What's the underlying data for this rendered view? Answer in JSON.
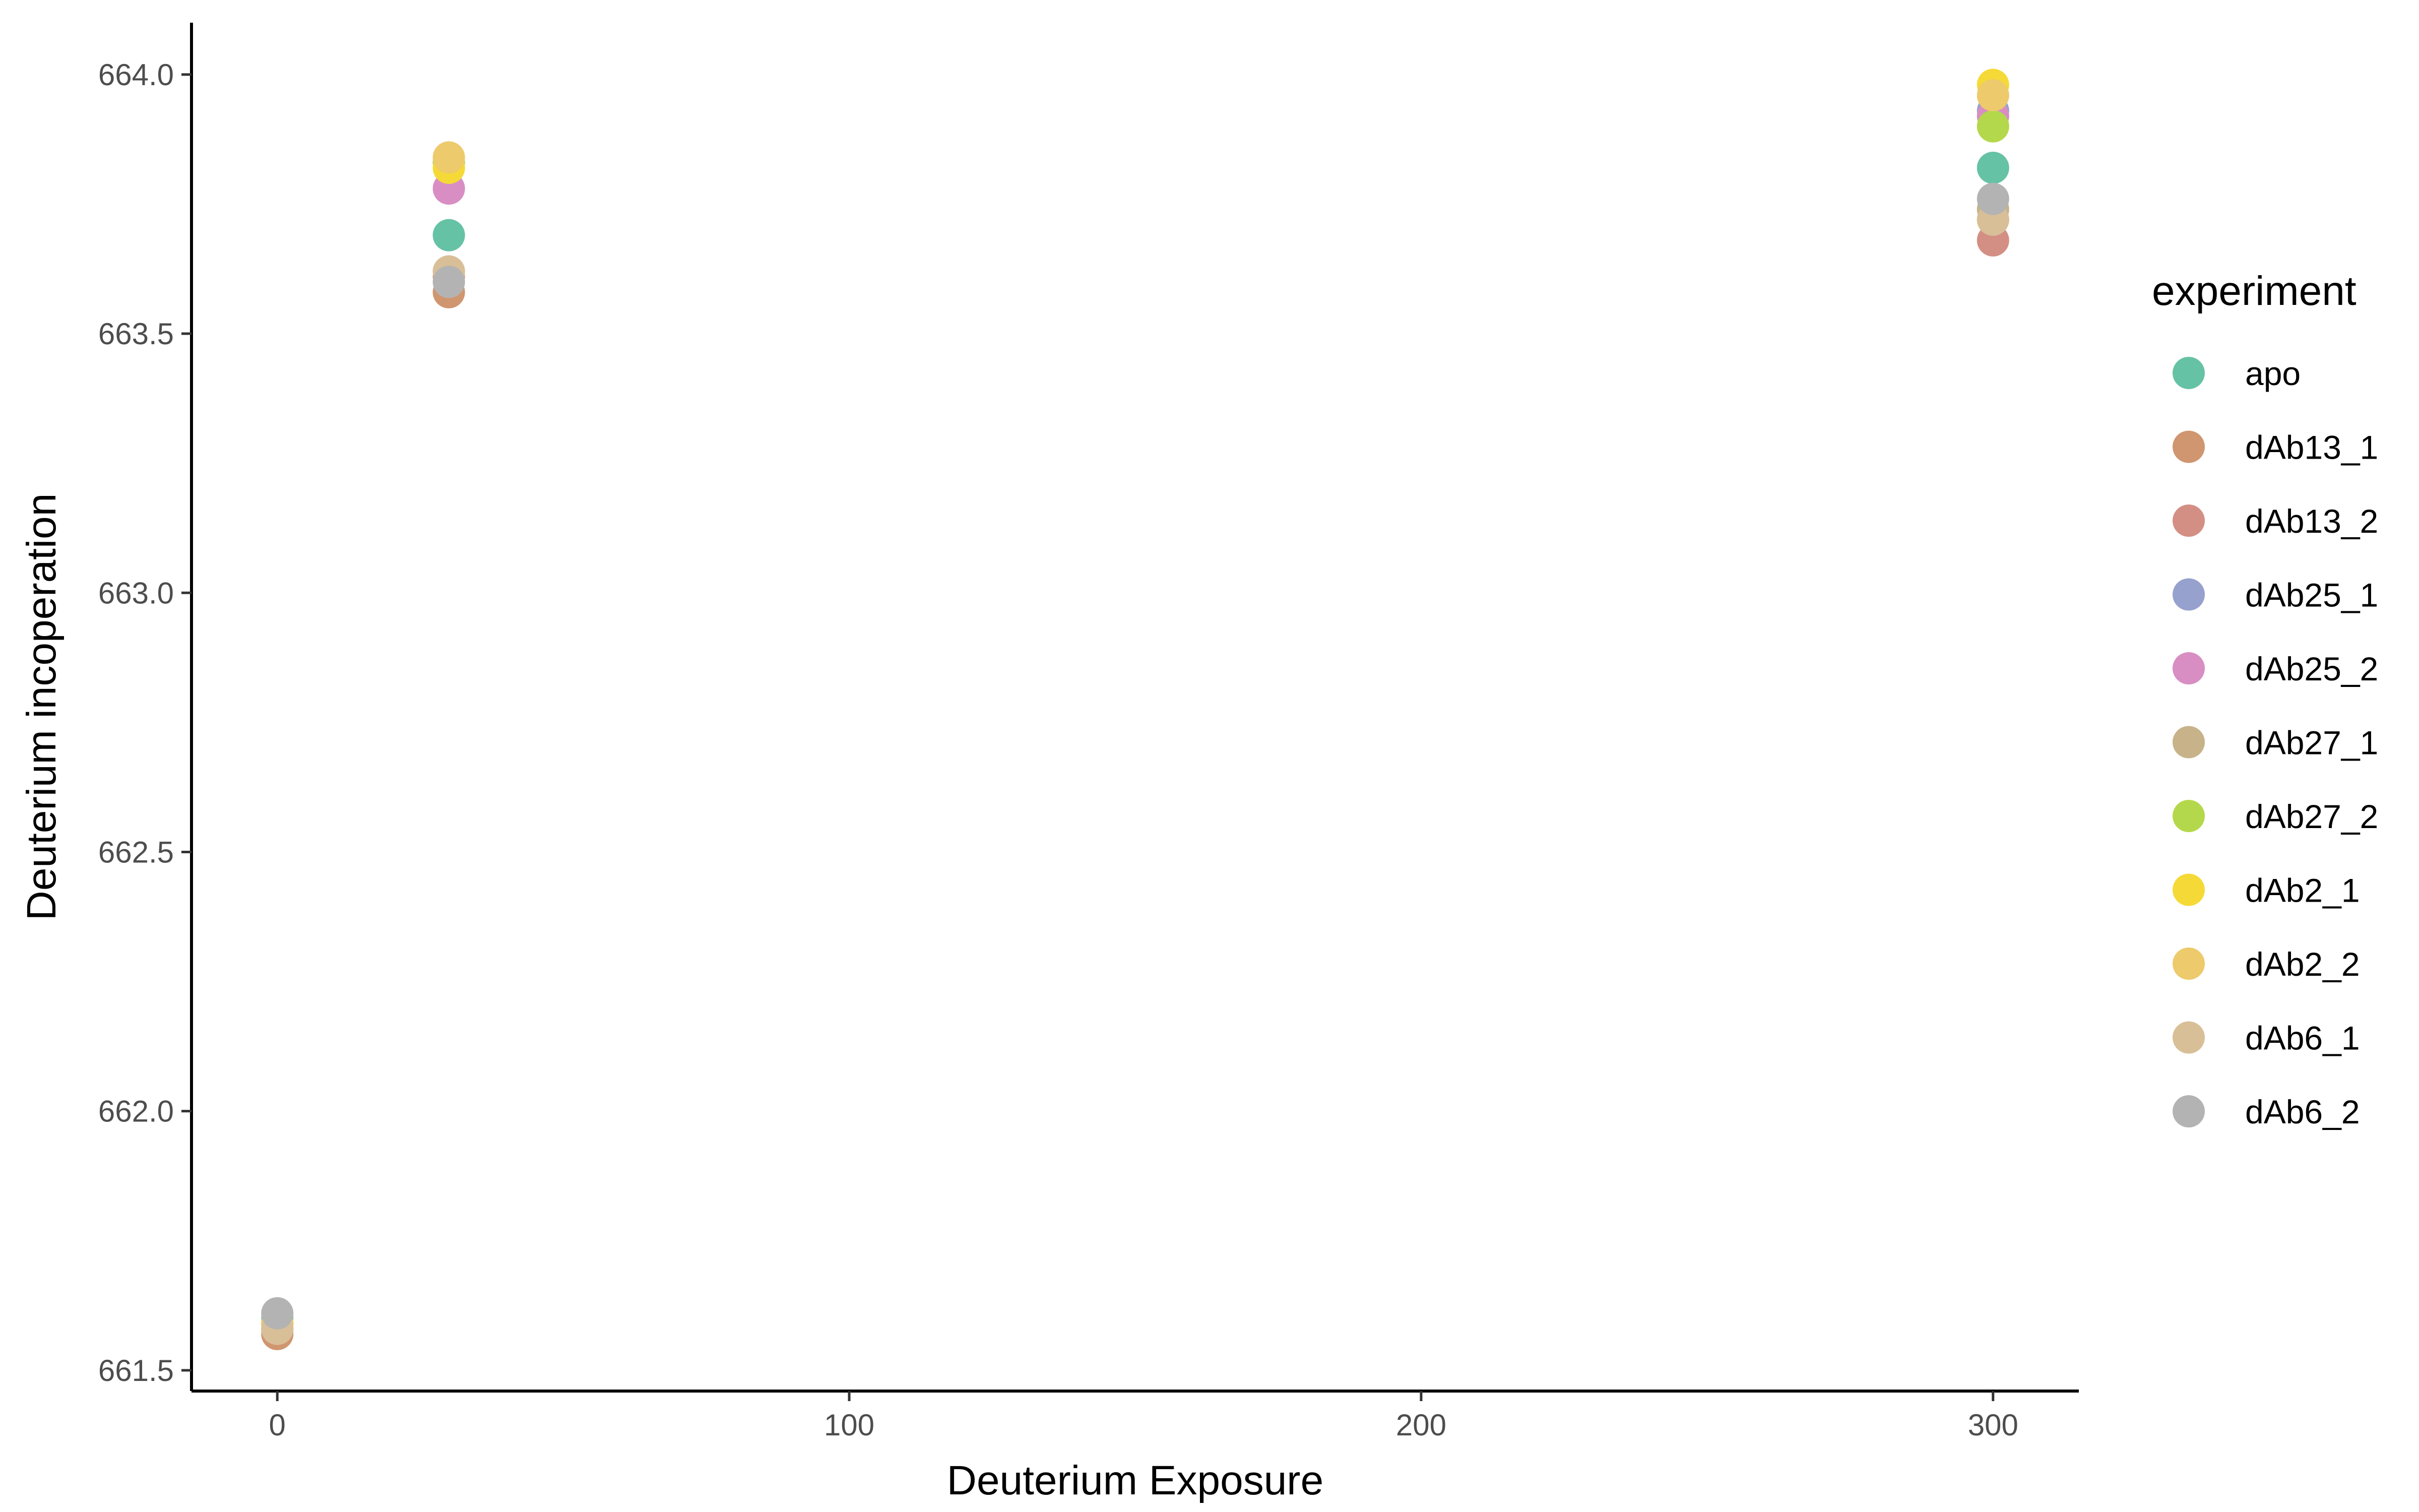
{
  "chart_data": {
    "type": "scatter",
    "xlabel": "Deuterium Exposure",
    "ylabel": "Deuterium incoperation",
    "xlim": [
      -15,
      315
    ],
    "ylim": [
      661.46,
      664.1
    ],
    "xticks": [
      0,
      100,
      200,
      300
    ],
    "xtick_labels": [
      "0",
      "100",
      "200",
      "300"
    ],
    "yticks": [
      661.5,
      662.0,
      662.5,
      663.0,
      663.5,
      664.0
    ],
    "ytick_labels": [
      "661.5",
      "662.0",
      "662.5",
      "663.0",
      "663.5",
      "664.0"
    ],
    "grid": false,
    "legend": {
      "title": "experiment",
      "position": "right"
    },
    "series": [
      {
        "name": "apo",
        "color": "#66C2A5",
        "x": [
          0,
          30,
          300
        ],
        "y": [
          661.6,
          663.69,
          663.82
        ]
      },
      {
        "name": "dAb13_1",
        "color": "#D09670",
        "x": [
          0,
          30,
          300
        ],
        "y": [
          661.57,
          663.58,
          663.72
        ]
      },
      {
        "name": "dAb13_2",
        "color": "#D48F84",
        "x": [
          0,
          30,
          300
        ],
        "y": [
          661.58,
          663.61,
          663.68
        ]
      },
      {
        "name": "dAb25_1",
        "color": "#96A1CD",
        "x": [
          0,
          30,
          300
        ],
        "y": [
          661.59,
          663.83,
          663.93
        ]
      },
      {
        "name": "dAb25_2",
        "color": "#D88EC3",
        "x": [
          0,
          30,
          300
        ],
        "y": [
          661.59,
          663.78,
          663.92
        ]
      },
      {
        "name": "dAb27_1",
        "color": "#C7B28A",
        "x": [
          0,
          30,
          300
        ],
        "y": [
          661.58,
          663.62,
          663.74
        ]
      },
      {
        "name": "dAb27_2",
        "color": "#B4D84B",
        "x": [
          0,
          30,
          300
        ],
        "y": [
          661.59,
          663.83,
          663.9
        ]
      },
      {
        "name": "dAb2_1",
        "color": "#F5D937",
        "x": [
          0,
          30,
          300
        ],
        "y": [
          661.59,
          663.82,
          663.98
        ]
      },
      {
        "name": "dAb2_2",
        "color": "#EDCA6B",
        "x": [
          0,
          30,
          300
        ],
        "y": [
          661.59,
          663.84,
          663.96
        ]
      },
      {
        "name": "dAb6_1",
        "color": "#D8BF98",
        "x": [
          0,
          30,
          300
        ],
        "y": [
          661.58,
          663.62,
          663.72
        ]
      },
      {
        "name": "dAb6_2",
        "color": "#B3B3B3",
        "x": [
          0,
          30,
          300
        ],
        "y": [
          661.61,
          663.6,
          663.76
        ]
      }
    ]
  }
}
